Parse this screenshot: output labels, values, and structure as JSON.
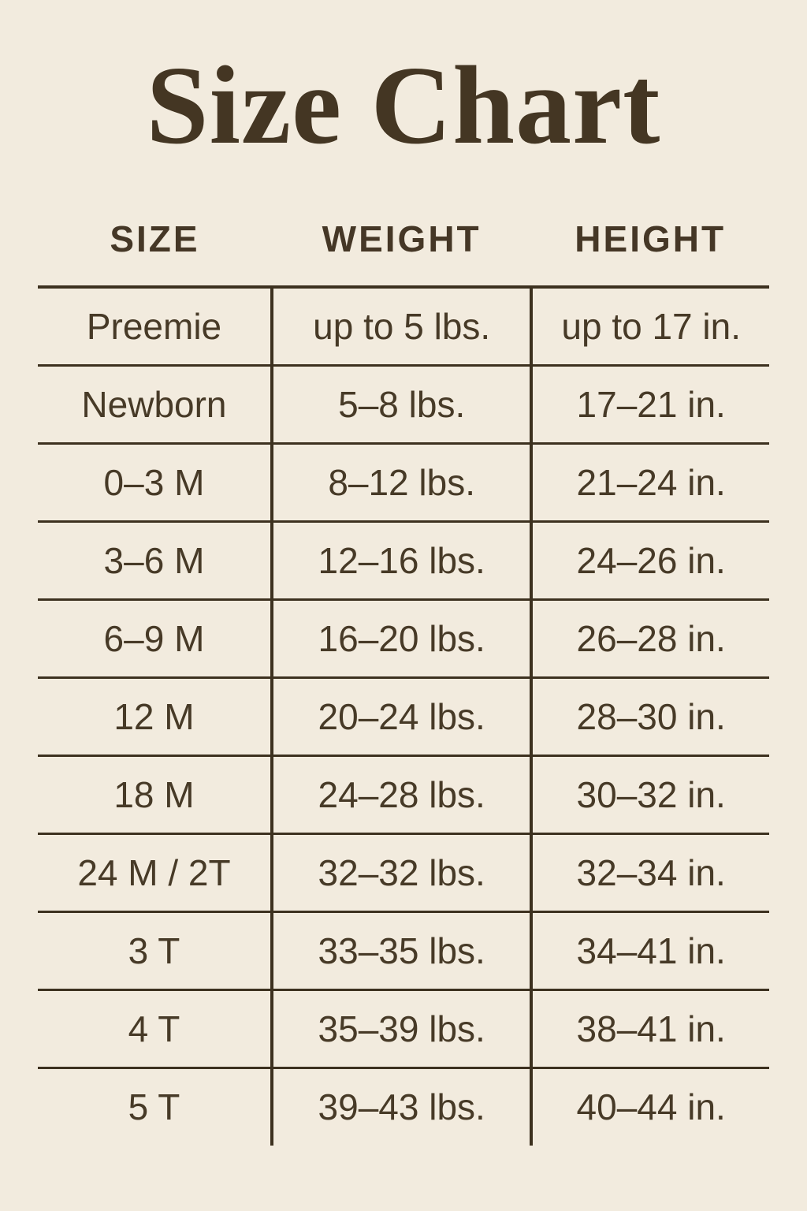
{
  "title": "Size Chart",
  "colors": {
    "background": "#f2ebde",
    "title_text": "#443623",
    "body_text": "#473a27",
    "grid_lines": "#3d311f"
  },
  "table": {
    "headers": [
      "SIZE",
      "WEIGHT",
      "HEIGHT"
    ],
    "rows": [
      {
        "size": "Preemie",
        "weight": "up to 5 lbs.",
        "height": "up to 17 in."
      },
      {
        "size": "Newborn",
        "weight": "5–8 lbs.",
        "height": "17–21 in."
      },
      {
        "size": "0–3 M",
        "weight": "8–12 lbs.",
        "height": "21–24 in."
      },
      {
        "size": "3–6 M",
        "weight": "12–16 lbs.",
        "height": "24–26 in."
      },
      {
        "size": "6–9 M",
        "weight": "16–20 lbs.",
        "height": "26–28 in."
      },
      {
        "size": "12 M",
        "weight": "20–24 lbs.",
        "height": "28–30 in."
      },
      {
        "size": "18 M",
        "weight": "24–28 lbs.",
        "height": "30–32 in."
      },
      {
        "size": "24 M / 2T",
        "weight": "32–32 lbs.",
        "height": "32–34 in."
      },
      {
        "size": "3 T",
        "weight": "33–35 lbs.",
        "height": "34–41 in."
      },
      {
        "size": "4 T",
        "weight": "35–39 lbs.",
        "height": "38–41 in."
      },
      {
        "size": "5 T",
        "weight": "39–43 lbs.",
        "height": "40–44 in."
      }
    ]
  }
}
